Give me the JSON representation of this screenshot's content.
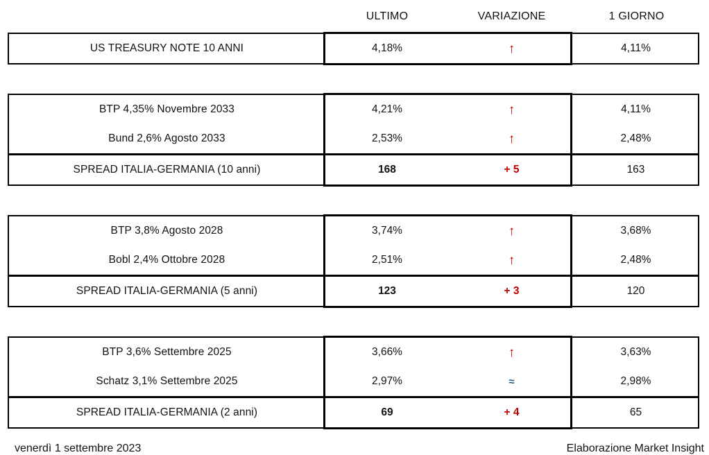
{
  "columns": {
    "ultimo": "ULTIMO",
    "variazione": "VARIAZIONE",
    "giorno": "1 GIORNO"
  },
  "colors": {
    "up_red": "#c00000",
    "flat_blue": "#1f5c8b",
    "border_black": "#000000"
  },
  "symbols": {
    "up_arrow": "↑",
    "approx": "≈"
  },
  "tables": [
    {
      "rows": [
        {
          "label": "US TREASURY NOTE 10 ANNI",
          "ultimo": "4,18%",
          "variazione": "↑",
          "var_style": "up",
          "giorno": "4,11%",
          "spread": false
        }
      ]
    },
    {
      "rows": [
        {
          "label": "BTP 4,35% Novembre 2033",
          "ultimo": "4,21%",
          "variazione": "↑",
          "var_style": "up",
          "giorno": "4,11%",
          "spread": false
        },
        {
          "label": "Bund 2,6% Agosto 2033",
          "ultimo": "2,53%",
          "variazione": "↑",
          "var_style": "up",
          "giorno": "2,48%",
          "spread": false
        },
        {
          "label": "SPREAD ITALIA-GERMANIA (10 anni)",
          "ultimo": "168",
          "variazione": "+ 5",
          "var_style": "delta",
          "giorno": "163",
          "spread": true
        }
      ]
    },
    {
      "rows": [
        {
          "label": "BTP 3,8% Agosto 2028",
          "ultimo": "3,74%",
          "variazione": "↑",
          "var_style": "up",
          "giorno": "3,68%",
          "spread": false
        },
        {
          "label": "Bobl 2,4% Ottobre 2028",
          "ultimo": "2,51%",
          "variazione": "↑",
          "var_style": "up",
          "giorno": "2,48%",
          "spread": false
        },
        {
          "label": "SPREAD ITALIA-GERMANIA (5 anni)",
          "ultimo": "123",
          "variazione": "+ 3",
          "var_style": "delta",
          "giorno": "120",
          "spread": true
        }
      ]
    },
    {
      "rows": [
        {
          "label": "BTP 3,6% Settembre 2025",
          "ultimo": "3,66%",
          "variazione": "↑",
          "var_style": "up",
          "giorno": "3,63%",
          "spread": false
        },
        {
          "label": "Schatz 3,1% Settembre 2025",
          "ultimo": "2,97%",
          "variazione": "≈",
          "var_style": "flat",
          "giorno": "2,98%",
          "spread": false
        },
        {
          "label": "SPREAD ITALIA-GERMANIA (2 anni)",
          "ultimo": "69",
          "variazione": "+ 4",
          "var_style": "delta",
          "giorno": "65",
          "spread": true
        }
      ]
    }
  ],
  "footer": {
    "date": "venerdì 1 settembre 2023",
    "credit": "Elaborazione Market Insight"
  }
}
